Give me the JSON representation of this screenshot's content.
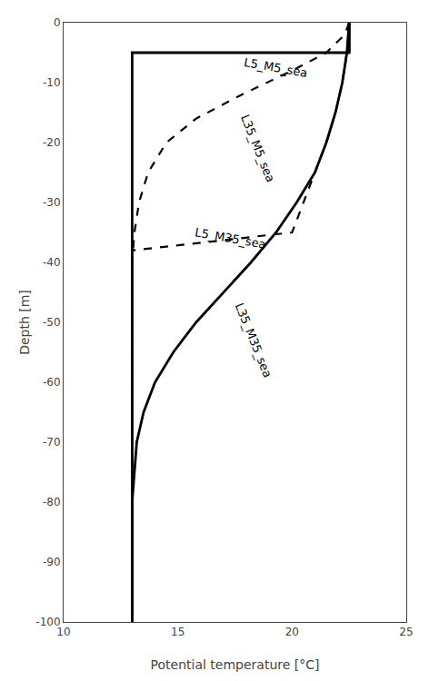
{
  "chart_data": {
    "type": "line",
    "xlabel": "Potential temperature [°C]",
    "ylabel": "Depth [m]",
    "xlim": [
      10,
      25
    ],
    "ylim": [
      -100,
      0
    ],
    "xticks": [
      10,
      15,
      20,
      25
    ],
    "yticks": [
      0,
      -10,
      -20,
      -30,
      -40,
      -50,
      -60,
      -70,
      -80,
      -90,
      -100
    ],
    "grid": false,
    "series": [
      {
        "line_style": "dashed",
        "color": "#000000",
        "x": [
          22.5,
          22.3,
          21.5,
          20.0,
          17.8,
          15.8,
          14.5,
          13.7,
          13.3,
          13.1,
          13.0,
          13.0,
          13.0,
          13.0,
          13.0,
          13.0,
          13.0
        ],
        "values": [
          0,
          -2,
          -5,
          -8,
          -12,
          -16,
          -20,
          -25,
          -30,
          -35,
          -40,
          -50,
          -60,
          -70,
          -80,
          -90,
          -100
        ]
      },
      {
        "line_style": "solid",
        "color": "#000000",
        "x": [
          22.5,
          22.5,
          13.0,
          13.0,
          13.0,
          13.0,
          13.0,
          13.0,
          13.0,
          13.0,
          13.0,
          13.0
        ],
        "values": [
          0,
          -5,
          -5,
          -35,
          -35,
          -40,
          -50,
          -60,
          -70,
          -80,
          -90,
          -100
        ]
      },
      {
        "line_style": "dashed",
        "color": "#000000",
        "x": [
          22.5,
          22.4,
          22.2,
          21.9,
          21.5,
          21.0,
          20.5,
          20.0,
          13.0,
          13.0,
          13.0,
          13.0,
          13.0,
          13.0,
          13.0,
          13.0
        ],
        "values": [
          0,
          -5,
          -10,
          -15,
          -20,
          -25,
          -30,
          -35,
          -38,
          -42,
          -50,
          -60,
          -70,
          -80,
          -90,
          -100
        ]
      },
      {
        "line_style": "solid",
        "color": "#000000",
        "x": [
          22.5,
          22.4,
          22.2,
          21.9,
          21.5,
          21.0,
          20.2,
          19.3,
          18.2,
          17.0,
          15.8,
          14.8,
          14.0,
          13.5,
          13.2,
          13.1,
          13.0,
          13.0,
          13.0
        ],
        "values": [
          0,
          -5,
          -10,
          -15,
          -20,
          -25,
          -30,
          -35,
          -40,
          -45,
          -50,
          -55,
          -60,
          -65,
          -70,
          -75,
          -80,
          -90,
          -100
        ]
      },
      {
        "line_style": "solid",
        "color": "#000000",
        "x": [
          22.5,
          22.5
        ],
        "values": [
          0,
          -5
        ]
      }
    ],
    "annotations": [
      {
        "text": "L5_M5_sea",
        "x": 19.3,
        "y": -7.5
      },
      {
        "text": "L35_M5_sea",
        "x": 18.5,
        "y": -21
      },
      {
        "text": "L5_M35_sea",
        "x": 17.3,
        "y": -36
      },
      {
        "text": "L35_M35_sea",
        "x": 18.3,
        "y": -53
      }
    ]
  }
}
